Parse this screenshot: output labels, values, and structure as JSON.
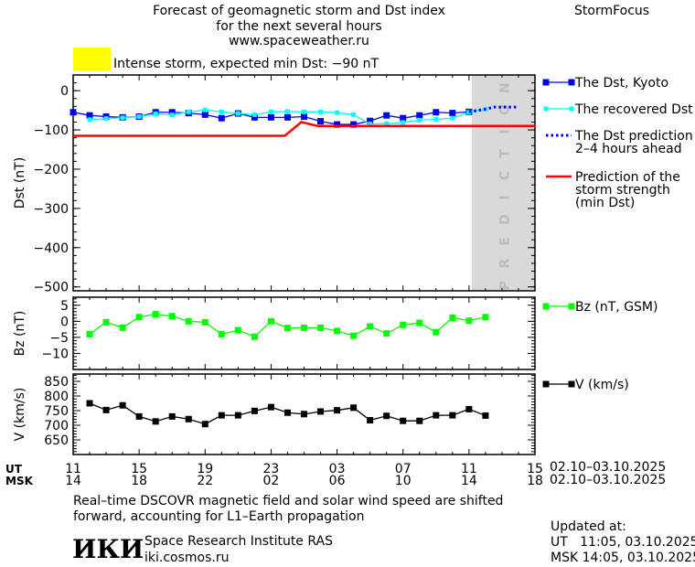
{
  "header": {
    "title_lines": [
      "Forecast of geomagnetic storm and Dst index",
      "for the next several hours",
      "www.spaceweather.ru"
    ],
    "brand": "StormFocus",
    "alert_color": "#ffff00",
    "alert_text": "Intense storm, expected min Dst: −90 nT"
  },
  "colors": {
    "dst": "#0000ff",
    "recovered": "#00ffff",
    "prediction": "#0000ff",
    "strength": "#ff0000",
    "bz": "#00ff00",
    "v": "#000000",
    "prediction_zone": "#d9d9d9"
  },
  "chart_data": [
    {
      "type": "line",
      "ylabel": "Dst (nT)",
      "ylim": [
        -510,
        40
      ],
      "yticks": [
        "0",
        "−100",
        "−200",
        "−300",
        "−400",
        "−500"
      ],
      "ytick_values": [
        0,
        -100,
        -200,
        -300,
        -400,
        -500
      ],
      "xlim": [
        "2025-10-02T11:00",
        "2025-10-03T15:00"
      ],
      "prediction_zone": {
        "label": "PREDICTION",
        "from": "2025-10-03T11:10",
        "to": "2025-10-03T15:00"
      },
      "series": [
        {
          "name": "The Dst, Kyoto",
          "style": "line-square",
          "x_start": "2025-10-02T11:00",
          "step_hours": 1,
          "values": [
            -55,
            -63,
            -66,
            -68,
            -66,
            -55,
            -55,
            -57,
            -61,
            -70,
            -58,
            -68,
            -68,
            -68,
            -66,
            -78,
            -86,
            -86,
            -77,
            -63,
            -70,
            -63,
            -55,
            -57,
            -54
          ]
        },
        {
          "name": "The recovered Dst",
          "style": "line-small-square",
          "x_start": "2025-10-02T12:00",
          "step_hours": 1,
          "values": [
            -74,
            -71,
            -69,
            -66,
            -59,
            -62,
            -54,
            -49,
            -54,
            -58,
            -61,
            -54,
            -53,
            -54,
            -54,
            -56,
            -61,
            -85,
            -84,
            -81,
            -75,
            -73,
            -70,
            -55,
            -47
          ]
        },
        {
          "name": "The Dst prediction 2–4 hours ahead",
          "name_lines": [
            "The Dst prediction",
            "2–4 hours ahead"
          ],
          "style": "dotted",
          "points": [
            [
              "2025-10-03T11:00",
              -54
            ],
            [
              "2025-10-03T12:00",
              -47
            ],
            [
              "2025-10-03T12:30",
              -42
            ],
            [
              "2025-10-03T14:00",
              -42
            ]
          ]
        },
        {
          "name": "Prediction of the storm strength (min Dst)",
          "name_lines": [
            "Prediction of the",
            "storm strength",
            "(min Dst)"
          ],
          "style": "thick-line",
          "points": [
            [
              "2025-10-02T11:00",
              -115
            ],
            [
              "2025-10-02T23:50",
              -115
            ],
            [
              "2025-10-03T00:50",
              -80
            ],
            [
              "2025-10-03T01:50",
              -90
            ],
            [
              "2025-10-03T15:00",
              -90
            ]
          ]
        }
      ]
    },
    {
      "type": "line",
      "ylabel": "Bz (nT)",
      "ylim": [
        -15,
        7.5
      ],
      "yticks": [
        "5",
        "0",
        "−5",
        "−10"
      ],
      "ytick_values": [
        5,
        0,
        -5,
        -10
      ],
      "series": [
        {
          "name": "Bz (nT, GSM)",
          "style": "line-square",
          "x_start": "2025-10-02T12:00",
          "step_hours": 1,
          "values": [
            -4,
            -0.3,
            -2,
            1.3,
            2.2,
            1.6,
            0,
            -0.3,
            -4,
            -2.8,
            -4.8,
            0,
            -2.1,
            -2,
            -2,
            -3,
            -4.5,
            -1.6,
            -3.8,
            -1.1,
            -0.5,
            -3.4,
            1.1,
            0.2,
            1.3
          ]
        }
      ]
    },
    {
      "type": "line",
      "ylabel": "V (km/s)",
      "ylim": [
        600,
        875
      ],
      "yticks": [
        "850",
        "800",
        "750",
        "700",
        "650"
      ],
      "ytick_values": [
        850,
        800,
        750,
        700,
        650
      ],
      "series": [
        {
          "name": "V (km/s)",
          "style": "line-square",
          "x_start": "2025-10-02T12:00",
          "step_hours": 1,
          "values": [
            775,
            752,
            768,
            730,
            713,
            730,
            721,
            704,
            734,
            734,
            749,
            762,
            743,
            738,
            747,
            751,
            760,
            717,
            732,
            715,
            715,
            734,
            734,
            755,
            733
          ]
        }
      ]
    }
  ],
  "xaxis": {
    "ut_label": "UT",
    "msk_label": "MSK",
    "ut_ticks": [
      "11",
      "15",
      "19",
      "23",
      "03",
      "07",
      "11",
      "15"
    ],
    "msk_ticks": [
      "14",
      "18",
      "22",
      "02",
      "06",
      "10",
      "14",
      "18"
    ],
    "ut_range": "02.10–03.10.2025",
    "msk_range": "02.10–03.10.2025"
  },
  "footer": {
    "note_lines": [
      "Real–time DSCOVR magnetic field and solar wind speed are shifted",
      "forward, accounting for L1–Earth propagation"
    ],
    "logo": "ИКИ",
    "institute": "Space Research Institute RAS",
    "site": "iki.cosmos.ru",
    "updated_label": "Updated at:",
    "updated_ut": "UT   11:05, 03.10.2025",
    "updated_msk": "MSK 14:05, 03.10.2025"
  }
}
